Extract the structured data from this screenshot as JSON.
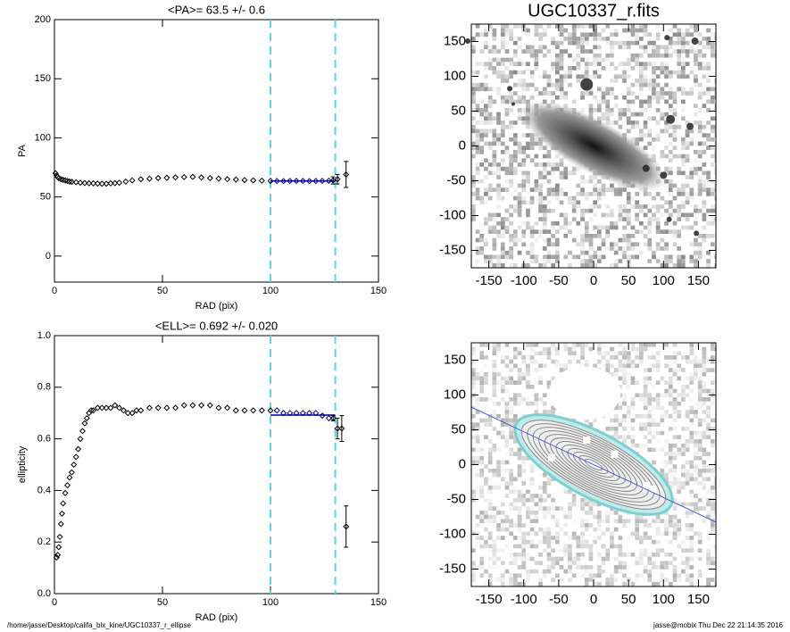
{
  "chart_data": [
    {
      "type": "scatter",
      "title": "<PA>=  63.5 +/-   0.6",
      "x_label": "RAD (pix)",
      "y_label": "PA",
      "xlim": [
        0,
        150
      ],
      "xticks": [
        0,
        50,
        100,
        150
      ],
      "ylim": [
        -22,
        200
      ],
      "yticks": [
        0,
        50,
        100,
        150,
        200
      ],
      "series": [
        {
          "color": "#000000",
          "x": [
            0.5,
            1,
            1.5,
            2,
            3,
            4,
            5,
            6,
            7,
            8,
            10,
            12,
            14,
            16,
            18,
            20,
            22,
            24,
            26,
            28,
            30,
            33,
            36,
            40,
            44,
            48,
            52,
            56,
            60,
            64,
            68,
            72,
            76,
            80,
            84,
            88,
            92,
            96,
            100
          ],
          "values": [
            70,
            68,
            67,
            66,
            65,
            64.5,
            64,
            63.5,
            63,
            62.8,
            62.5,
            62,
            61.8,
            61.6,
            61.5,
            61.3,
            61.2,
            61.2,
            61.5,
            61.7,
            62,
            63,
            64,
            65,
            65.5,
            66,
            66.2,
            66.5,
            66.8,
            67,
            66.5,
            66,
            65.5,
            65,
            64.7,
            64.3,
            64,
            63.8,
            63.6
          ]
        },
        {
          "color": "#00008b",
          "x": [
            103,
            106,
            109,
            112,
            115,
            118,
            121,
            124,
            127
          ],
          "values": [
            63.5,
            63.4,
            63.5,
            63.6,
            63.5,
            63.4,
            63.5,
            63.6,
            63.7
          ]
        },
        {
          "color": "#000000",
          "x": [
            129,
            131,
            135
          ],
          "values": [
            64,
            65,
            69
          ],
          "errors": [
            3,
            4,
            11
          ]
        }
      ],
      "fit": {
        "x": [
          100,
          130
        ],
        "value": 63.5,
        "color": "#00008b"
      },
      "vlines": {
        "values": [
          100,
          130
        ],
        "color": "#5fd3e6"
      }
    },
    {
      "type": "scatter",
      "title": "<ELL>= 0.692 +/-  0.020",
      "x_label": "RAD (pix)",
      "y_label": "ellipticity",
      "xlim": [
        0,
        150
      ],
      "xticks": [
        0,
        50,
        100,
        150
      ],
      "ylim": [
        0,
        1
      ],
      "yticks": [
        {
          "value": 0,
          "label": "0.0"
        },
        0.2,
        0.4,
        0.6,
        0.8,
        {
          "value": 1,
          "label": "1.0"
        }
      ],
      "series": [
        {
          "color": "#000000",
          "x": [
            1,
            1.5,
            2,
            2.5,
            3,
            3.5,
            4,
            5,
            6,
            7,
            8,
            9,
            10,
            11,
            12,
            13,
            14,
            15,
            16,
            17,
            18,
            20,
            22,
            24,
            26,
            28,
            30,
            32,
            34,
            36,
            38,
            40,
            44,
            48,
            52,
            56,
            60,
            64,
            68,
            72,
            76,
            80,
            84,
            88,
            92,
            96,
            100
          ],
          "values": [
            0.14,
            0.15,
            0.18,
            0.22,
            0.27,
            0.31,
            0.35,
            0.39,
            0.42,
            0.45,
            0.47,
            0.5,
            0.53,
            0.56,
            0.6,
            0.63,
            0.66,
            0.68,
            0.7,
            0.71,
            0.71,
            0.72,
            0.72,
            0.72,
            0.72,
            0.73,
            0.72,
            0.71,
            0.7,
            0.7,
            0.71,
            0.71,
            0.72,
            0.72,
            0.72,
            0.72,
            0.73,
            0.73,
            0.73,
            0.73,
            0.72,
            0.72,
            0.71,
            0.71,
            0.71,
            0.71,
            0.71
          ]
        },
        {
          "color": "#00008b",
          "x": [
            103,
            106,
            109,
            112,
            115,
            118,
            121,
            124,
            127
          ],
          "values": [
            0.71,
            0.7,
            0.7,
            0.7,
            0.7,
            0.7,
            0.7,
            0.69,
            0.68
          ]
        },
        {
          "color": "#000000",
          "x": [
            129,
            131,
            133,
            135
          ],
          "values": [
            0.68,
            0.64,
            0.64,
            0.26
          ],
          "errors": [
            0.01,
            0.04,
            0.05,
            0.08
          ]
        }
      ],
      "fit": {
        "x": [
          100,
          130
        ],
        "value": 0.692,
        "color": "#00008b"
      },
      "vlines": {
        "values": [
          100,
          130
        ],
        "color": "#5fd3e6"
      }
    },
    {
      "type": "image",
      "title": "UGC10337_r.fits",
      "xlim": [
        -175,
        175
      ],
      "xticks": [
        -150,
        -100,
        -50,
        0,
        50,
        100,
        150
      ],
      "ylim": [
        -175,
        175
      ],
      "yticks": [
        -150,
        -100,
        -50,
        0,
        50,
        100,
        150
      ]
    },
    {
      "type": "image",
      "xlim": [
        -175,
        175
      ],
      "xticks": [
        -150,
        -100,
        -50,
        0,
        50,
        100,
        150
      ],
      "ylim": [
        -175,
        175
      ],
      "yticks": [
        -150,
        -100,
        -50,
        0,
        50,
        100,
        150
      ]
    }
  ],
  "footer": {
    "left": "/home/jasse/Desktop/califa_blx_kine/UGC10337_r_ellipse",
    "right": "jasse@mobix  Thu Dec 22 21:14:35 2016"
  }
}
